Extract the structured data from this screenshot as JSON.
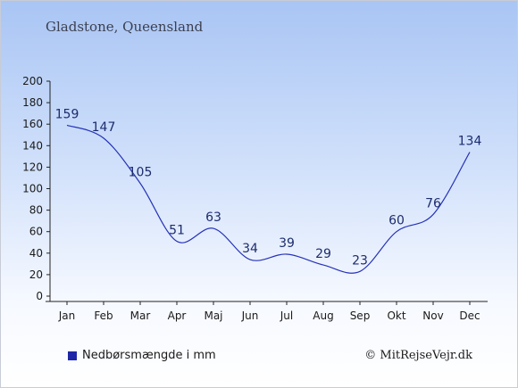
{
  "title": "Gladstone, Queensland",
  "legend_label": "Nedbørsmængde i mm",
  "credit": "© MitRejseVejr.dk",
  "colors": {
    "line": "#2633b8",
    "legend": "#1f27a6",
    "label": "#1d2c6e"
  },
  "chart_data": {
    "type": "line",
    "title": "Gladstone, Queensland",
    "xlabel": "",
    "ylabel": "",
    "categories": [
      "Jan",
      "Feb",
      "Mar",
      "Apr",
      "Maj",
      "Jun",
      "Jul",
      "Aug",
      "Sep",
      "Okt",
      "Nov",
      "Dec"
    ],
    "series": [
      {
        "name": "Nedbørsmængde i mm",
        "values": [
          159,
          147,
          105,
          51,
          63,
          34,
          39,
          29,
          23,
          60,
          76,
          134
        ]
      }
    ],
    "ylim": [
      0,
      200
    ],
    "yticks": [
      0,
      20,
      40,
      60,
      80,
      100,
      120,
      140,
      160,
      180,
      200
    ],
    "grid": false,
    "legend_position": "bottom-left"
  }
}
